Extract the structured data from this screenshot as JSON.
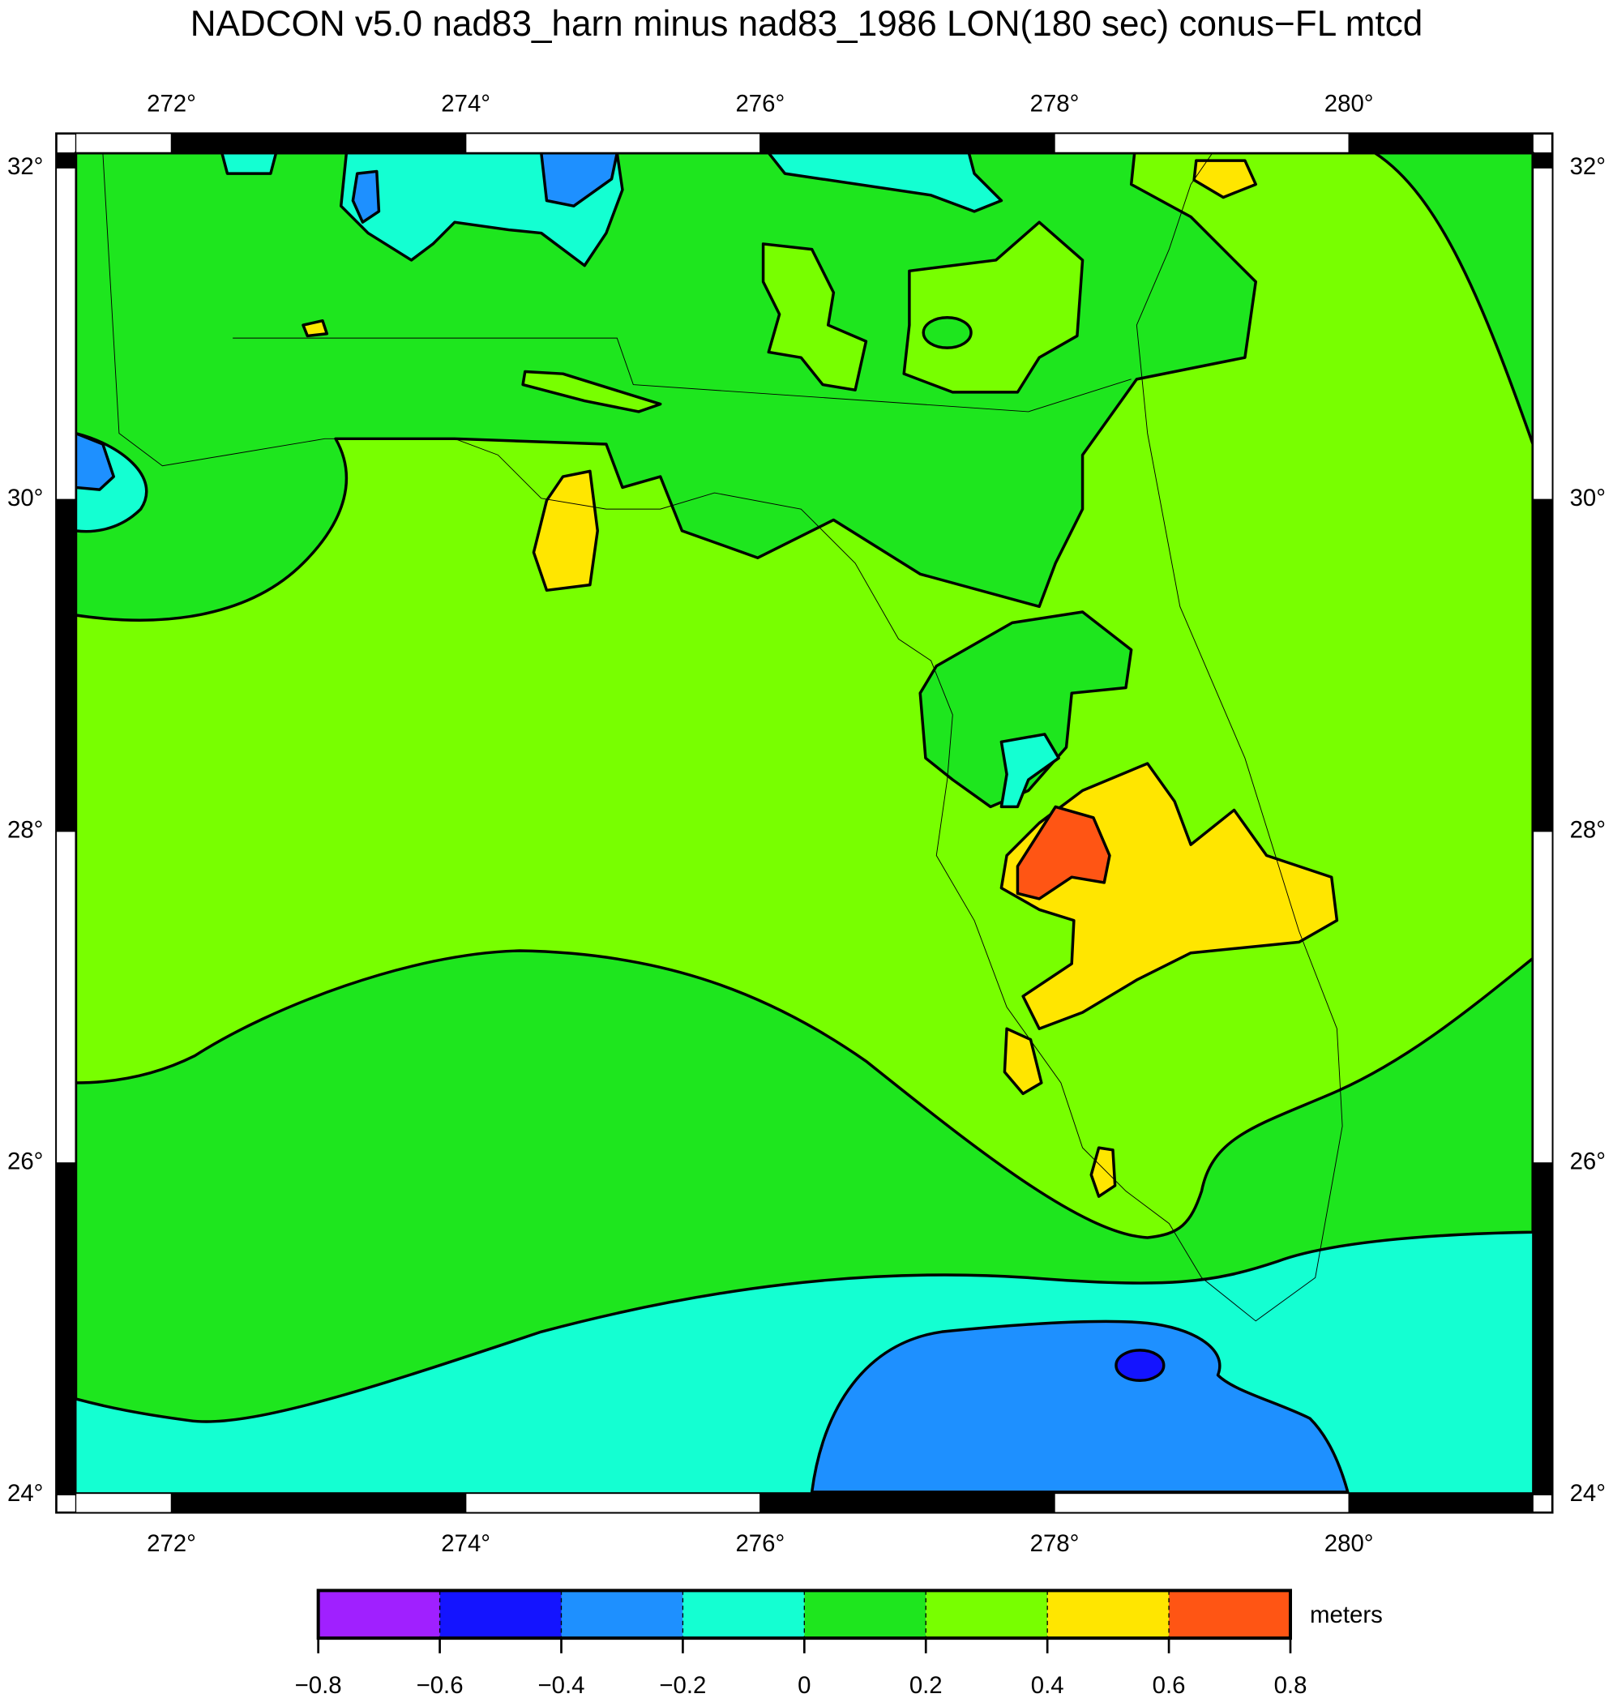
{
  "map": {
    "title": "NADCON v5.0 nad83_harn minus nad83_1986 LON(180 sec) conus−FL mtcd",
    "lon_range": [
      271.35,
      281.25
    ],
    "lat_range": [
      24.01,
      32.09
    ],
    "lon_ticks": [
      {
        "value": 272,
        "label": "272°"
      },
      {
        "value": 274,
        "label": "274°"
      },
      {
        "value": 276,
        "label": "276°"
      },
      {
        "value": 278,
        "label": "278°"
      },
      {
        "value": 280,
        "label": "280°"
      }
    ],
    "lat_ticks": [
      {
        "value": 32,
        "label": "32°"
      },
      {
        "value": 30,
        "label": "30°"
      },
      {
        "value": 28,
        "label": "28°"
      },
      {
        "value": 26,
        "label": "26°"
      },
      {
        "value": 24,
        "label": "24°"
      }
    ]
  },
  "colorbar": {
    "unit": "meters",
    "ticks": [
      {
        "value": -0.8,
        "label": "−0.8"
      },
      {
        "value": -0.6,
        "label": "−0.6"
      },
      {
        "value": -0.4,
        "label": "−0.4"
      },
      {
        "value": -0.2,
        "label": "−0.2"
      },
      0,
      0.2,
      0.4,
      0.6,
      0.8
    ],
    "colors": [
      "#a020ff",
      "#1414ff",
      "#1e90ff",
      "#14ffd2",
      "#1ee61e",
      "#78ff00",
      "#ffe600",
      "#ff5514"
    ]
  }
}
